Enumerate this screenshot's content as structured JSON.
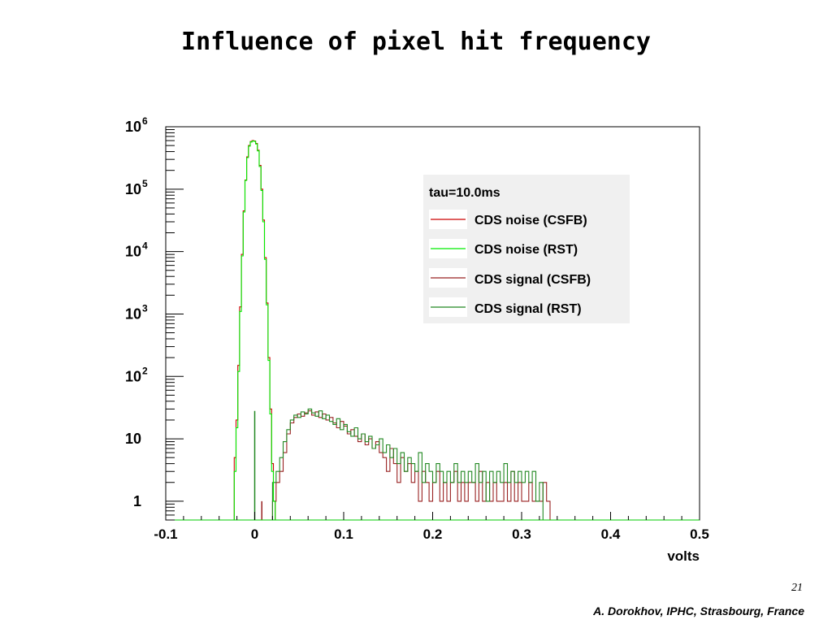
{
  "slide": {
    "title": "Influence of pixel hit frequency",
    "number": "21",
    "footer": "A. Dorokhov,  IPHC, Strasbourg, France"
  },
  "chart_data": {
    "type": "histogram",
    "xlabel": "volts",
    "ylabel": "",
    "xlim": [
      -0.1,
      0.5
    ],
    "ylim": [
      0.5,
      1000000
    ],
    "yscale": "log",
    "x_ticks": [
      "-0.1",
      "0",
      "0.1",
      "0.2",
      "0.3",
      "0.4",
      "0.5"
    ],
    "y_ticks": [
      {
        "base": "1",
        "exp": ""
      },
      {
        "base": "10",
        "exp": ""
      },
      {
        "base": "10",
        "exp": "2"
      },
      {
        "base": "10",
        "exp": "3"
      },
      {
        "base": "10",
        "exp": "4"
      },
      {
        "base": "10",
        "exp": "5"
      },
      {
        "base": "10",
        "exp": "6"
      }
    ],
    "legend": {
      "title": "tau=10.0ms",
      "placement": "top-right",
      "entries": [
        "CDS noise (CSFB)",
        "CDS noise (RST)",
        "CDS signal (CSFB)",
        "CDS signal (RST)"
      ]
    },
    "colors": {
      "noise_csfb": "#cc0000",
      "noise_rst": "#00ee00",
      "signal_csfb": "#992222",
      "signal_rst": "#228822",
      "legend_bg": "#f0f0f0"
    },
    "series": [
      {
        "name": "CDS noise (CSFB)",
        "x": [
          -0.022,
          -0.02,
          -0.018,
          -0.016,
          -0.014,
          -0.012,
          -0.01,
          -0.008,
          -0.006,
          -0.004,
          -0.002,
          0.0,
          0.002,
          0.004,
          0.006,
          0.008,
          0.01,
          0.012,
          0.014,
          0.016,
          0.018,
          0.02,
          0.022
        ],
        "values": [
          5,
          20,
          150,
          1300,
          9000,
          45000,
          140000,
          330000,
          500000,
          580000,
          600000,
          590000,
          540000,
          420000,
          240000,
          100000,
          32000,
          8000,
          1500,
          200,
          30,
          4,
          1
        ]
      },
      {
        "name": "CDS noise (RST)",
        "x": [
          -0.022,
          -0.02,
          -0.018,
          -0.016,
          -0.014,
          -0.012,
          -0.01,
          -0.008,
          -0.006,
          -0.004,
          -0.002,
          0.0,
          0.002,
          0.004,
          0.006,
          0.008,
          0.01,
          0.012,
          0.014,
          0.016,
          0.018,
          0.02,
          0.022
        ],
        "values": [
          3,
          15,
          120,
          1100,
          8500,
          43000,
          138000,
          320000,
          490000,
          570000,
          590000,
          585000,
          530000,
          410000,
          230000,
          95000,
          30000,
          7500,
          1400,
          180,
          25,
          3,
          1
        ]
      },
      {
        "name": "CDS signal (CSFB)",
        "x": [
          0.022,
          0.026,
          0.03,
          0.034,
          0.038,
          0.042,
          0.046,
          0.05,
          0.054,
          0.058,
          0.062,
          0.066,
          0.07,
          0.074,
          0.078,
          0.082,
          0.086,
          0.09,
          0.094,
          0.098,
          0.102,
          0.106,
          0.11,
          0.114,
          0.118,
          0.122,
          0.126,
          0.13,
          0.134,
          0.138,
          0.142,
          0.146,
          0.15,
          0.154,
          0.158,
          0.162,
          0.166,
          0.17,
          0.174,
          0.178,
          0.182,
          0.186,
          0.19,
          0.194,
          0.198,
          0.202,
          0.206,
          0.21,
          0.214,
          0.218,
          0.222,
          0.226,
          0.23,
          0.234,
          0.238,
          0.242,
          0.246,
          0.25,
          0.254,
          0.258,
          0.262,
          0.266,
          0.27,
          0.274,
          0.278,
          0.282,
          0.286,
          0.29,
          0.294,
          0.298,
          0.302,
          0.306,
          0.31,
          0.314,
          0.318,
          0.322,
          0.326,
          0.33
        ],
        "values": [
          1,
          2,
          3,
          6,
          12,
          18,
          22,
          25,
          23,
          26,
          28,
          24,
          27,
          22,
          25,
          20,
          22,
          18,
          15,
          19,
          16,
          12,
          14,
          11,
          9,
          12,
          8,
          10,
          7,
          9,
          6,
          5,
          3,
          7,
          4,
          2,
          5,
          3,
          4,
          2,
          3,
          1,
          3,
          2,
          1,
          2,
          3,
          1,
          2,
          1,
          2,
          3,
          1,
          2,
          1,
          2,
          2,
          1,
          3,
          1,
          2,
          1,
          2,
          1,
          1,
          2,
          1,
          3,
          1,
          2,
          1,
          1,
          2,
          1,
          1,
          1,
          2,
          1
        ]
      },
      {
        "name": "CDS signal (RST)",
        "x": [
          0.022,
          0.026,
          0.03,
          0.034,
          0.038,
          0.042,
          0.046,
          0.05,
          0.054,
          0.058,
          0.062,
          0.066,
          0.07,
          0.074,
          0.078,
          0.082,
          0.086,
          0.09,
          0.094,
          0.098,
          0.102,
          0.106,
          0.11,
          0.114,
          0.118,
          0.122,
          0.126,
          0.13,
          0.134,
          0.138,
          0.142,
          0.146,
          0.15,
          0.154,
          0.158,
          0.162,
          0.166,
          0.17,
          0.174,
          0.178,
          0.182,
          0.186,
          0.19,
          0.194,
          0.198,
          0.202,
          0.206,
          0.21,
          0.214,
          0.218,
          0.222,
          0.226,
          0.23,
          0.234,
          0.238,
          0.242,
          0.246,
          0.25,
          0.254,
          0.258,
          0.262,
          0.266,
          0.27,
          0.274,
          0.278,
          0.282,
          0.286,
          0.29,
          0.294,
          0.298,
          0.302,
          0.306,
          0.31,
          0.314,
          0.318,
          0.322
        ],
        "values": [
          2,
          3,
          5,
          9,
          14,
          20,
          24,
          22,
          27,
          25,
          30,
          26,
          23,
          28,
          21,
          24,
          19,
          17,
          21,
          14,
          17,
          13,
          11,
          15,
          10,
          12,
          9,
          11,
          7,
          8,
          10,
          6,
          8,
          5,
          7,
          4,
          6,
          3,
          5,
          4,
          3,
          6,
          2,
          4,
          3,
          2,
          4,
          3,
          2,
          3,
          2,
          4,
          2,
          3,
          2,
          3,
          2,
          4,
          2,
          3,
          1,
          3,
          2,
          3,
          2,
          4,
          2,
          3,
          2,
          3,
          2,
          3,
          2,
          3,
          1,
          2
        ]
      }
    ],
    "spikes": [
      {
        "x": 0.0,
        "value": 28,
        "series": "CDS signal (RST)"
      },
      {
        "x": 0.008,
        "value": 1,
        "series": "CDS signal (CSFB)"
      }
    ]
  }
}
